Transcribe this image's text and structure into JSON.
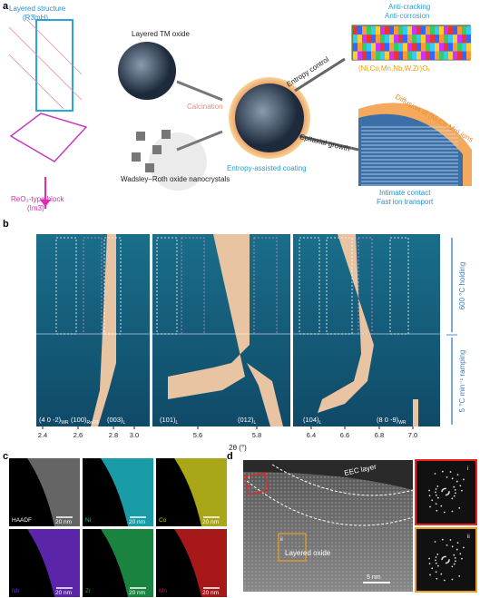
{
  "panel_a": {
    "label": "a",
    "layered_title": "Layered structure",
    "layered_group": "(R3̄mH)",
    "tm_oxide": "Layered TM oxide",
    "reo3_title": "ReO₃-type block",
    "reo3_group": "(Im3̄)",
    "wr_oxide": "Wadsley–Roth oxide nanocrystals",
    "calcination": "Calcination",
    "entropy_control": "Entropy control",
    "epitaxial": "Epitaxial growth",
    "coating": "Entropy-assisted coating",
    "anti_cracking": "Anti-cracking",
    "anti_corrosion": "Anti-corrosion",
    "formula": "(Ni,Co,Mn,Nb,W,Zr)Oₓ",
    "diffusion": "Diffusion of (Ni,Co,Mn) ions",
    "contact": "Intimate contact",
    "transport": "Fast ion transport"
  },
  "panel_b": {
    "label": "b",
    "holding": "600 °C holding",
    "ramping": "5 °C min⁻¹ ramping",
    "xlabel": "2θ (°)",
    "ticks": [
      "2.4",
      "2.6",
      "2.8",
      "3.0",
      "5.6",
      "5.8",
      "6.4",
      "6.6",
      "6.8",
      "7.0"
    ],
    "peaks": [
      {
        "text": "(4 0 -2)",
        "sub": "WR"
      },
      {
        "text": "(100)",
        "sub": "ReO3"
      },
      {
        "text": "(003)",
        "sub": "L"
      },
      {
        "text": "(101)",
        "sub": "L"
      },
      {
        "text": "(012)",
        "sub": "L"
      },
      {
        "text": "(104)",
        "sub": "L"
      },
      {
        "text": "(8 0 -9)",
        "sub": "WR"
      }
    ]
  },
  "panel_c": {
    "label": "c",
    "maps": [
      {
        "name": "HAADF",
        "scale": "20 nm"
      },
      {
        "name": "Ni",
        "scale": "20 nm"
      },
      {
        "name": "Co",
        "scale": "20 nm"
      },
      {
        "name": "Nb",
        "scale": "20 nm"
      },
      {
        "name": "Zr",
        "scale": "20 nm"
      },
      {
        "name": "Mn",
        "scale": "20 nm"
      }
    ]
  },
  "panel_d": {
    "label": "d",
    "eec": "EEC layer",
    "layered": "Layered oxide",
    "scale": "5 nm",
    "region1": "i",
    "region2": "ii",
    "fft1": "i",
    "fft2": "ii"
  }
}
